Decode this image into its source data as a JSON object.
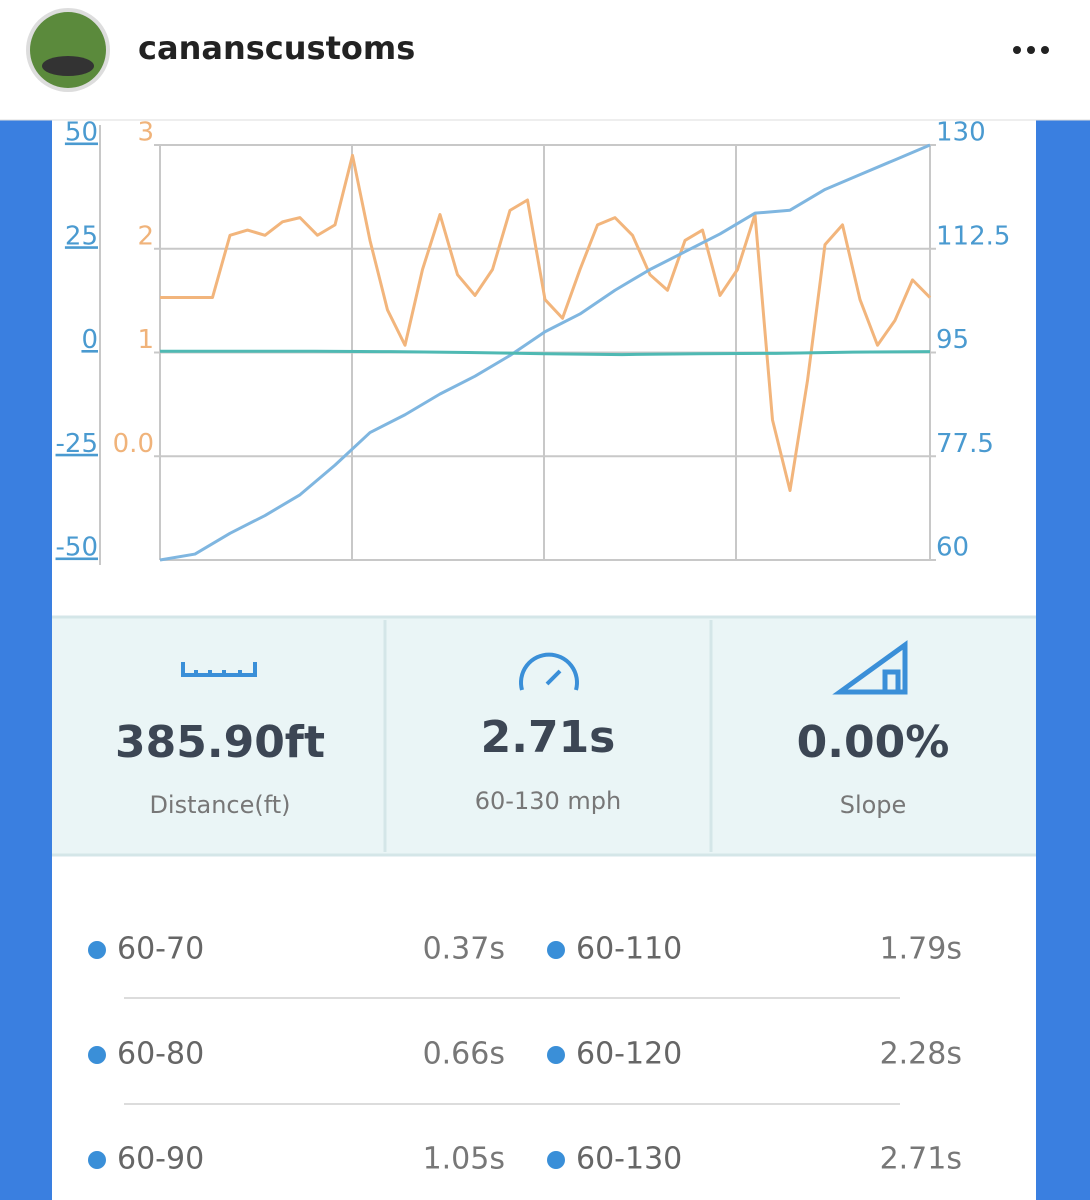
{
  "header": {
    "username": "cananscustoms"
  },
  "chart_data": {
    "type": "line",
    "ylim": [
      -50,
      50
    ],
    "yticks": [
      -50,
      -25,
      0,
      25,
      50
    ],
    "y2lim": [
      60,
      130
    ],
    "y2ticks": [
      60,
      77.5,
      95,
      112.5,
      130
    ],
    "y3lim": [
      -1,
      3
    ],
    "y3ticks": [
      {
        "value": 0,
        "label": "0.0"
      },
      1,
      2,
      3
    ],
    "grid": true,
    "series": [
      {
        "color": "#f2b57c",
        "axis": "y3",
        "values": [
          1.53,
          1.53,
          1.53,
          1.53,
          2.13,
          2.18,
          2.13,
          2.26,
          2.3,
          2.13,
          2.23,
          2.9,
          2.08,
          1.41,
          1.07,
          1.8,
          2.33,
          1.75,
          1.55,
          1.8,
          2.37,
          2.47,
          1.51,
          1.33,
          1.8,
          2.23,
          2.3,
          2.13,
          1.75,
          1.6,
          2.08,
          2.18,
          1.55,
          1.8,
          2.33,
          0.35,
          -0.33,
          0.73,
          2.04,
          2.23,
          1.51,
          1.07,
          1.31,
          1.7,
          1.53
        ]
      },
      {
        "color": "#7fb6e0",
        "axis": "y2",
        "values": [
          60,
          61,
          64.5,
          67.5,
          71,
          76,
          81.5,
          84.5,
          88,
          91,
          94.5,
          98.5,
          101.5,
          105.5,
          109,
          112,
          115,
          118.5,
          119,
          122.5,
          125,
          127.5,
          130
        ]
      },
      {
        "color": "#4fb9b3",
        "values": [
          0.3,
          0.3,
          0.3,
          0.2,
          0,
          -0.3,
          -0.5,
          -0.3,
          -0.2,
          0.1,
          0.2
        ]
      }
    ]
  },
  "stats": [
    {
      "value": "385.90ft",
      "label": "Distance(ft)"
    },
    {
      "value": "2.71s",
      "label": "60-130 mph"
    },
    {
      "value": "0.00%",
      "label": "Slope"
    }
  ],
  "splits": [
    {
      "range": "60-70",
      "time": "0.37s"
    },
    {
      "range": "60-80",
      "time": "0.66s"
    },
    {
      "range": "60-90",
      "time": "1.05s"
    },
    {
      "range": "60-110",
      "time": "1.79s"
    },
    {
      "range": "60-120",
      "time": "2.28s"
    },
    {
      "range": "60-130",
      "time": "2.71s"
    }
  ]
}
